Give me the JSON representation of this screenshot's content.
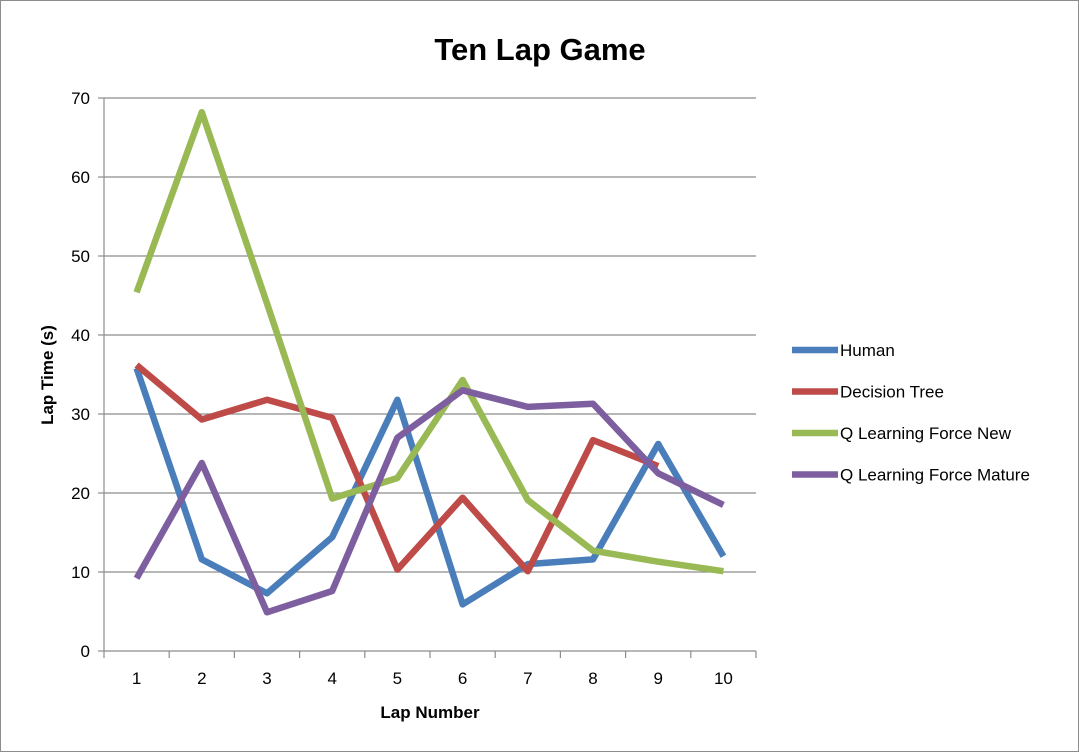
{
  "chart_data": {
    "type": "line",
    "title": "Ten Lap Game",
    "xlabel": "Lap Number",
    "ylabel": "Lap Time (s)",
    "categories": [
      "1",
      "2",
      "3",
      "4",
      "5",
      "6",
      "7",
      "8",
      "9",
      "10"
    ],
    "ylim": [
      0,
      70
    ],
    "yticks": [
      "0",
      "10",
      "20",
      "30",
      "40",
      "50",
      "60",
      "70"
    ],
    "grid": true,
    "legend_position": "right",
    "series": [
      {
        "name": "Human",
        "color": "#4a7ebb",
        "values": [
          35.8,
          11.6,
          7.3,
          14.4,
          31.8,
          5.9,
          11.0,
          11.6,
          26.2,
          12.0
        ]
      },
      {
        "name": "Decision Tree",
        "color": "#be4b48",
        "values": [
          36.2,
          29.3,
          31.8,
          29.5,
          10.3,
          19.4,
          10.1,
          26.7,
          23.4,
          null
        ]
      },
      {
        "name": "Q Learning Force New",
        "color": "#98b954",
        "values": [
          45.4,
          68.2,
          44.0,
          19.3,
          21.9,
          34.3,
          19.1,
          12.7,
          11.3,
          10.1
        ]
      },
      {
        "name": "Q Learning Force Mature",
        "color": "#7d5fa0",
        "values": [
          9.2,
          23.8,
          4.9,
          7.6,
          27.0,
          33.0,
          30.9,
          31.3,
          22.5,
          18.5
        ]
      }
    ]
  }
}
